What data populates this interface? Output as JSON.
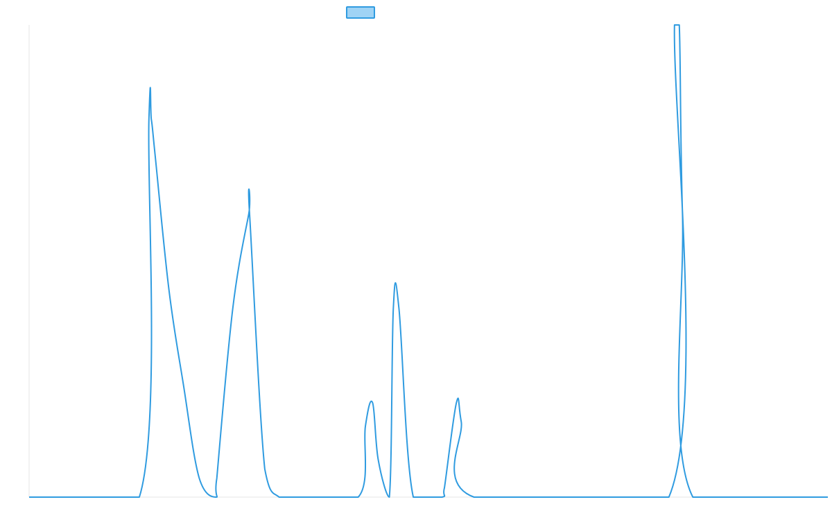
{
  "chart_data": {
    "type": "line",
    "title": "",
    "xlabel": "",
    "ylabel": "",
    "grid": false,
    "legend": {
      "placement": "top-center",
      "entries": [
        {
          "name": "",
          "swatch": "filled-rectangle"
        }
      ]
    },
    "colors": {
      "line": "#2f9be0",
      "legend_fill": "#9fd3f5",
      "axis": "#e6e6e6"
    },
    "xlim": [
      0,
      100
    ],
    "ylim": [
      0,
      5
    ],
    "series": [
      {
        "name": "",
        "x": [
          0,
          13.8,
          15.0,
          15.3,
          15.8,
          17.5,
          19.3,
          21.3,
          23.4,
          23.5,
          25.5,
          27.5,
          27.6,
          29.5,
          31.3,
          33.5,
          41.2,
          42.1,
          43.0,
          43.7,
          45.1,
          45.6,
          46.3,
          48.1,
          51.7,
          52.0,
          53.5,
          54.1,
          55.7,
          80.1,
          80.8,
          81.4,
          81.8,
          83.1,
          100
        ],
        "y": [
          0,
          0,
          4.0,
          4.0,
          3.6,
          2.2,
          1.2,
          0.2,
          0,
          0.2,
          2.0,
          3.0,
          3.0,
          0.3,
          0,
          0,
          0,
          0.75,
          1.0,
          0.4,
          0,
          2.0,
          2.0,
          0,
          0,
          0.1,
          1.0,
          0.8,
          0,
          0,
          5.0,
          5.0,
          3.0,
          0,
          0
        ]
      }
    ]
  }
}
